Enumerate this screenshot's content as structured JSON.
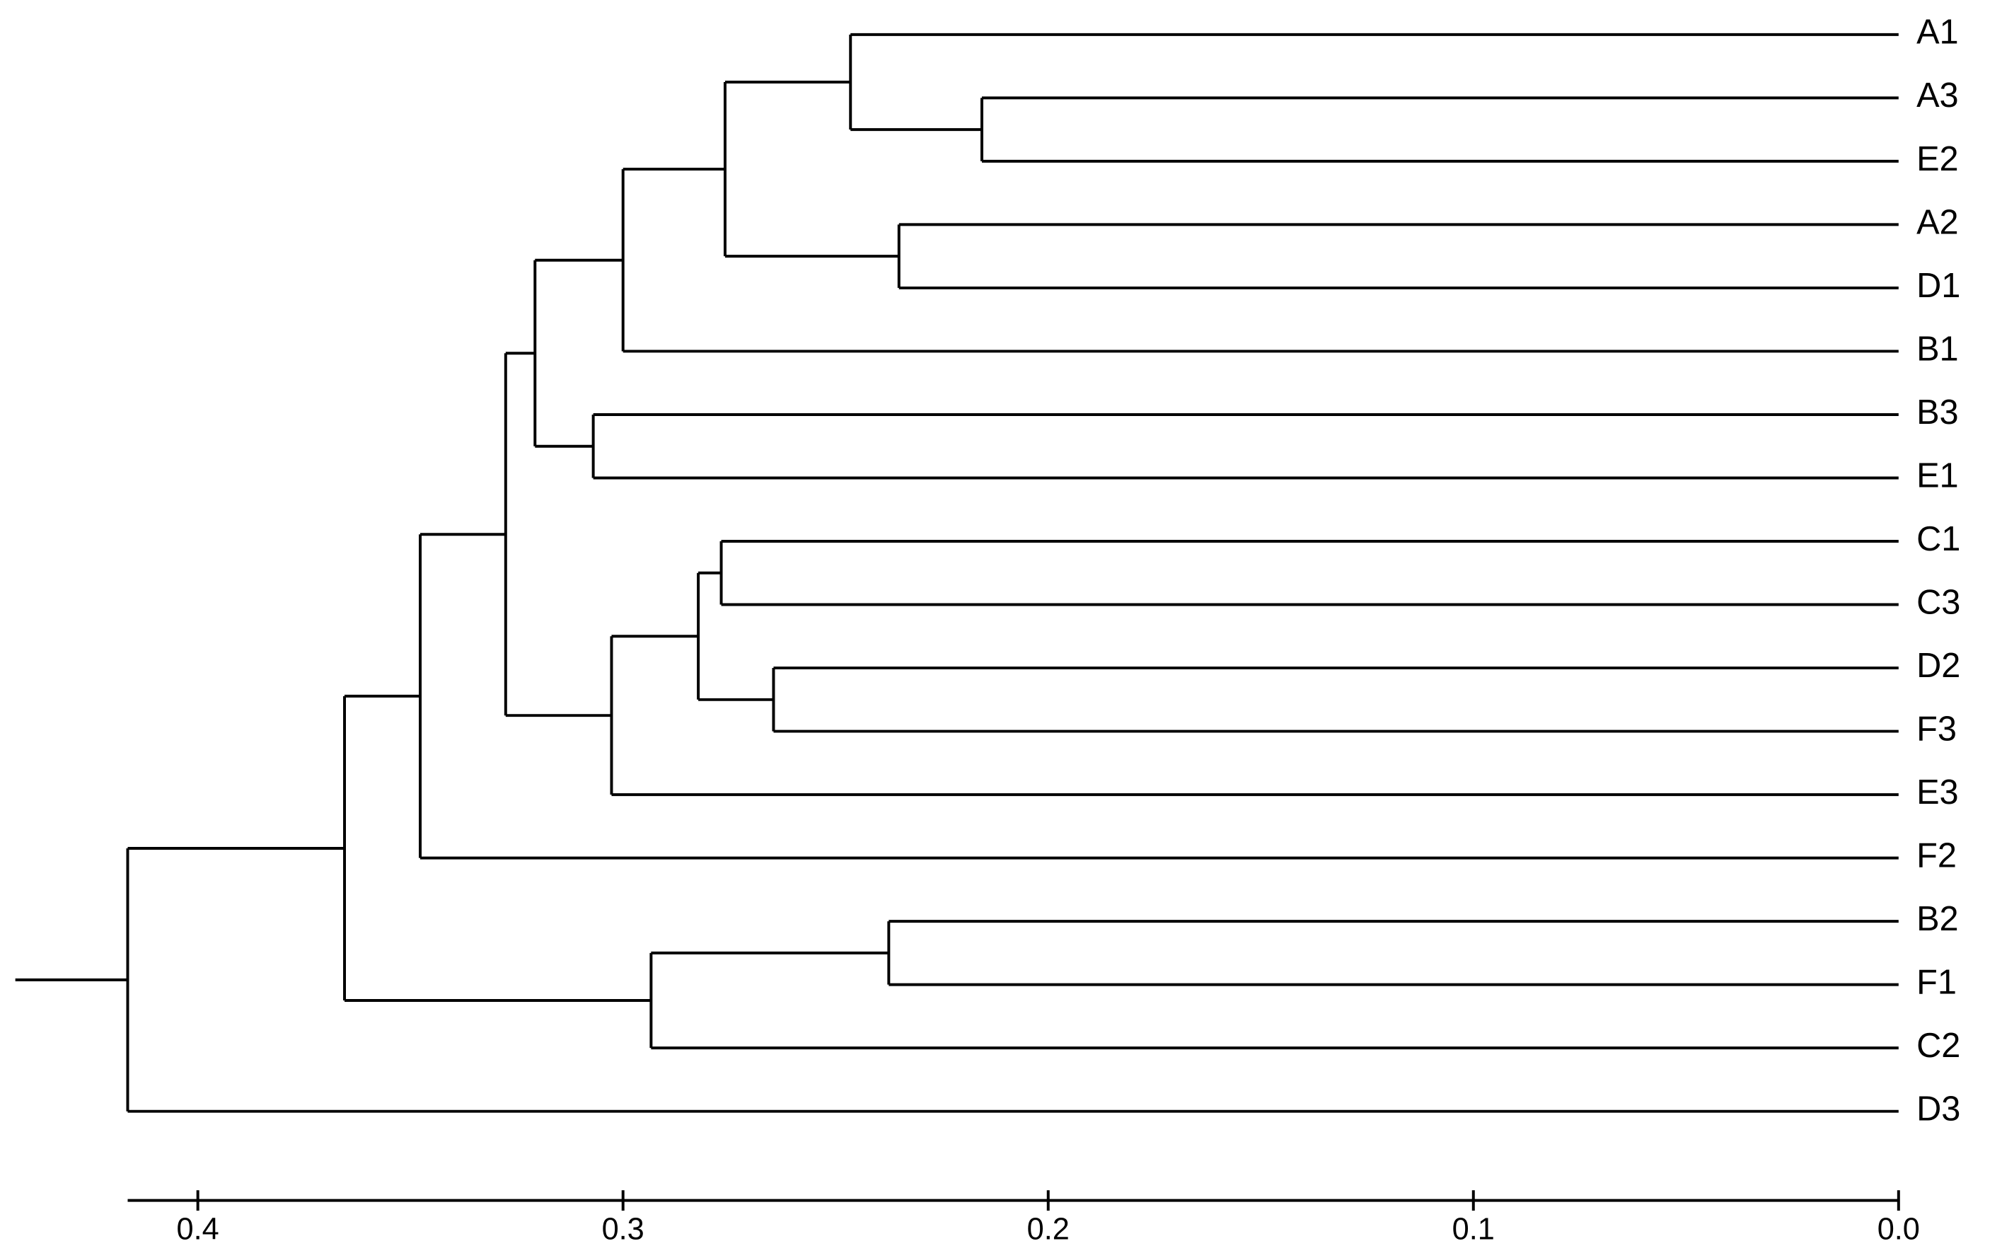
{
  "chart_data": {
    "type": "dendrogram",
    "orientation": "left",
    "color": "#000000",
    "xlim": [
      0.4165,
      0
    ],
    "xticks": [
      0.4,
      0.3,
      0.2,
      0.1,
      {
        "value": 0,
        "label": "0.0"
      }
    ],
    "tree": {
      "height": 0.4165,
      "children": [
        {
          "height": 0.3655,
          "children": [
            {
              "height": 0.3477,
              "children": [
                {
                  "height": 0.3276,
                  "children": [
                    {
                      "height": 0.3207,
                      "children": [
                        {
                          "height": 0.3,
                          "children": [
                            {
                              "height": 0.276,
                              "children": [
                                {
                                  "height": 0.2465,
                                  "children": [
                                    {
                                      "label": "A1"
                                    },
                                    {
                                      "height": 0.2156,
                                      "children": [
                                        {
                                          "label": "A3"
                                        },
                                        {
                                          "label": "E2"
                                        }
                                      ]
                                    }
                                  ]
                                },
                                {
                                  "height": 0.2351,
                                  "children": [
                                    {
                                      "label": "A2"
                                    },
                                    {
                                      "label": "D1"
                                    }
                                  ]
                                }
                              ]
                            },
                            {
                              "label": "B1"
                            }
                          ]
                        },
                        {
                          "height": 0.307,
                          "children": [
                            {
                              "label": "B3"
                            },
                            {
                              "label": "E1"
                            }
                          ]
                        }
                      ]
                    },
                    {
                      "height": 0.3027,
                      "children": [
                        {
                          "height": 0.2823,
                          "children": [
                            {
                              "height": 0.2769,
                              "children": [
                                {
                                  "label": "C1"
                                },
                                {
                                  "label": "C3"
                                }
                              ]
                            },
                            {
                              "height": 0.2646,
                              "children": [
                                {
                                  "label": "D2"
                                },
                                {
                                  "label": "F3"
                                }
                              ]
                            }
                          ]
                        },
                        {
                          "label": "E3"
                        }
                      ]
                    }
                  ]
                },
                {
                  "label": "F2"
                }
              ]
            },
            {
              "height": 0.2934,
              "children": [
                {
                  "height": 0.2375,
                  "children": [
                    {
                      "label": "B2"
                    },
                    {
                      "label": "F1"
                    }
                  ]
                },
                {
                  "label": "C2"
                }
              ]
            }
          ]
        },
        {
          "label": "D3"
        }
      ]
    }
  }
}
